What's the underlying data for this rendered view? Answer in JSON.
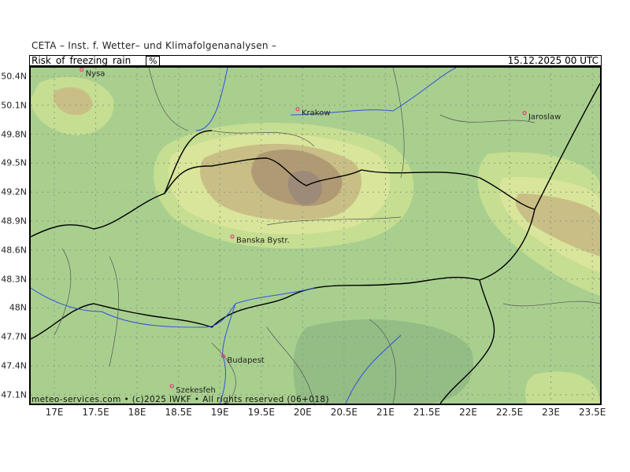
{
  "header": "CETA – Inst. f. Wetter– und Klimafolgenanalysen –",
  "title": {
    "parameter": "Risk_of_freezing_rain",
    "unit": "%",
    "datetime": "15.12.2025 00 UTC"
  },
  "credit": "meteo-services.com • (c)2025 IWKF • All rights reserved (06+018)",
  "axes": {
    "lon_ticks": [
      "17E",
      "17.5E",
      "18E",
      "18.5E",
      "19E",
      "19.5E",
      "20E",
      "20.5E",
      "21E",
      "21.5E",
      "22E",
      "22.5E",
      "23E",
      "23.5E"
    ],
    "lat_ticks": [
      "50.4N",
      "50.1N",
      "49.8N",
      "49.5N",
      "49.2N",
      "48.9N",
      "48.6N",
      "48.3N",
      "48N",
      "47.7N",
      "47.4N",
      "47.1N"
    ]
  },
  "cities": [
    {
      "name": "Nysa",
      "lon": 17.33,
      "lat": 50.47
    },
    {
      "name": "Krakow",
      "lon": 19.94,
      "lat": 50.06
    },
    {
      "name": "Jaroslaw",
      "lon": 22.68,
      "lat": 50.02
    },
    {
      "name": "Banska Bystr.",
      "lon": 19.15,
      "lat": 48.74
    },
    {
      "name": "Budapest",
      "lon": 19.04,
      "lat": 47.5
    },
    {
      "name": "Szekesfeh",
      "lon": 18.42,
      "lat": 47.19
    }
  ],
  "colors": {
    "base": "#a9cf8f",
    "light": "#c5de92",
    "yellow": "#d9e59a",
    "tan": "#c9bf86",
    "brown": "#b09a74",
    "dark": "#9e8a78",
    "forest": "#93bd85",
    "city": "#e0407a",
    "river": "#3050e0"
  }
}
